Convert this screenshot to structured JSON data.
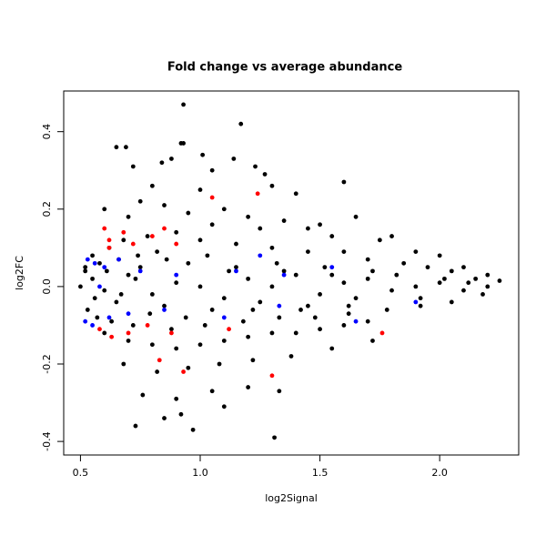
{
  "chart_data": {
    "type": "scatter",
    "title": "Fold change vs average abundance",
    "x_label": "log2Signal",
    "y_label": "log2FC",
    "xlim": [
      0.43,
      2.33
    ],
    "ylim": [
      -0.435,
      0.505
    ],
    "xticks": [
      0.5,
      {
        "value": 1,
        "label": "1.0"
      },
      1.5,
      {
        "value": 2,
        "label": "2.0"
      }
    ],
    "yticks": [
      -0.4,
      -0.2,
      {
        "value": 0,
        "label": "0.0"
      },
      0.2,
      0.4
    ],
    "series": [
      {
        "color": "#000000",
        "x": [
          0.93,
          1.17,
          0.65,
          0.69,
          0.92,
          0.93,
          1.01,
          0.88,
          0.84,
          1.14,
          1.05,
          1.23,
          1.27,
          0.72,
          1.6,
          0.8,
          1.0,
          1.3,
          0.75,
          1.4,
          0.6,
          0.7,
          0.85,
          0.95,
          1.1,
          1.2,
          1.35,
          1.5,
          1.65,
          1.8,
          1.9,
          2.0,
          2.1,
          2.2,
          2.25,
          1.75,
          1.55,
          1.45,
          1.25,
          1.05,
          0.55,
          0.62,
          0.68,
          0.78,
          0.9,
          1.0,
          1.15,
          1.3,
          1.45,
          1.6,
          1.7,
          1.85,
          1.95,
          2.05,
          2.15,
          0.52,
          0.58,
          0.66,
          0.74,
          0.82,
          0.5,
          0.55,
          0.6,
          0.7,
          0.8,
          0.9,
          1.0,
          1.1,
          1.2,
          1.3,
          1.4,
          1.5,
          1.6,
          1.7,
          1.8,
          1.9,
          2.0,
          2.1,
          2.2,
          0.65,
          0.75,
          0.85,
          0.95,
          1.05,
          1.15,
          1.25,
          1.35,
          1.45,
          1.55,
          1.65,
          0.53,
          0.57,
          0.63,
          0.72,
          0.88,
          1.02,
          1.18,
          1.33,
          1.48,
          1.62,
          1.78,
          1.92,
          2.05,
          2.18,
          0.6,
          0.7,
          0.8,
          0.9,
          1.0,
          1.1,
          1.2,
          1.3,
          1.4,
          1.5,
          1.6,
          1.7,
          0.68,
          0.82,
          0.95,
          1.08,
          1.22,
          1.38,
          1.55,
          1.72,
          0.76,
          0.9,
          1.05,
          1.2,
          1.33,
          0.73,
          0.97,
          0.92,
          1.31,
          0.85,
          1.1,
          0.52,
          0.56,
          0.61,
          0.67,
          0.73,
          0.79,
          0.86,
          0.94,
          1.03,
          1.12,
          1.22,
          1.32,
          1.42,
          1.52,
          1.62,
          1.72,
          1.82,
          1.92,
          2.02,
          2.12
        ],
        "values": [
          0.47,
          0.42,
          0.36,
          0.36,
          0.37,
          0.37,
          0.34,
          0.33,
          0.32,
          0.33,
          0.3,
          0.31,
          0.29,
          0.31,
          0.27,
          0.26,
          0.25,
          0.26,
          0.22,
          0.24,
          0.2,
          0.18,
          0.21,
          0.19,
          0.2,
          0.18,
          0.17,
          0.16,
          0.18,
          0.13,
          0.09,
          0.08,
          0.05,
          0.03,
          0.015,
          0.12,
          0.13,
          0.15,
          0.15,
          0.16,
          0.08,
          0.1,
          0.12,
          0.13,
          0.14,
          0.12,
          0.11,
          0.1,
          0.09,
          0.09,
          0.07,
          0.06,
          0.05,
          0.04,
          0.02,
          0.04,
          0.06,
          0.07,
          0.08,
          0.09,
          0.0,
          0.02,
          -0.01,
          0.03,
          -0.02,
          0.01,
          0.0,
          -0.03,
          0.02,
          0.0,
          0.03,
          -0.02,
          0.01,
          0.02,
          -0.01,
          0.0,
          0.01,
          -0.01,
          0.0,
          -0.04,
          0.05,
          -0.05,
          0.06,
          -0.06,
          0.05,
          -0.04,
          0.04,
          -0.05,
          0.03,
          -0.03,
          -0.06,
          -0.08,
          -0.09,
          -0.1,
          -0.11,
          -0.1,
          -0.09,
          -0.08,
          -0.08,
          -0.07,
          -0.06,
          -0.05,
          -0.04,
          -0.02,
          -0.12,
          -0.14,
          -0.15,
          -0.16,
          -0.15,
          -0.14,
          -0.13,
          -0.12,
          -0.12,
          -0.11,
          -0.1,
          -0.09,
          -0.2,
          -0.22,
          -0.21,
          -0.2,
          -0.19,
          -0.18,
          -0.16,
          -0.14,
          -0.28,
          -0.29,
          -0.27,
          -0.26,
          -0.27,
          -0.36,
          -0.37,
          -0.33,
          -0.39,
          -0.34,
          -0.31,
          0.05,
          -0.03,
          0.04,
          -0.02,
          0.02,
          -0.07,
          0.07,
          -0.08,
          0.08,
          0.04,
          -0.06,
          0.06,
          -0.06,
          0.05,
          -0.05,
          0.04,
          0.03,
          -0.03,
          0.02,
          0.01
        ]
      },
      {
        "color": "#ff0000",
        "x": [
          0.6,
          0.62,
          0.68,
          0.72,
          0.8,
          0.85,
          0.9,
          1.05,
          1.24,
          0.58,
          0.63,
          0.7,
          0.78,
          0.88,
          0.93,
          1.12,
          1.76,
          1.3,
          0.62,
          0.83
        ],
        "values": [
          0.15,
          0.12,
          0.14,
          0.11,
          0.13,
          0.15,
          0.11,
          0.23,
          0.24,
          -0.11,
          -0.13,
          -0.12,
          -0.1,
          -0.12,
          -0.22,
          -0.11,
          -0.12,
          -0.23,
          0.1,
          -0.19
        ]
      },
      {
        "color": "#0000ff",
        "x": [
          0.53,
          0.56,
          0.6,
          0.66,
          0.75,
          0.9,
          1.15,
          1.35,
          1.55,
          0.52,
          0.55,
          0.62,
          0.7,
          0.85,
          1.1,
          1.33,
          1.65,
          1.9,
          0.58,
          1.25
        ],
        "values": [
          0.07,
          0.06,
          0.05,
          0.07,
          0.04,
          0.03,
          0.04,
          0.03,
          0.05,
          -0.09,
          -0.1,
          -0.08,
          -0.07,
          -0.06,
          -0.08,
          -0.05,
          -0.09,
          -0.04,
          0.0,
          0.08
        ]
      }
    ]
  }
}
